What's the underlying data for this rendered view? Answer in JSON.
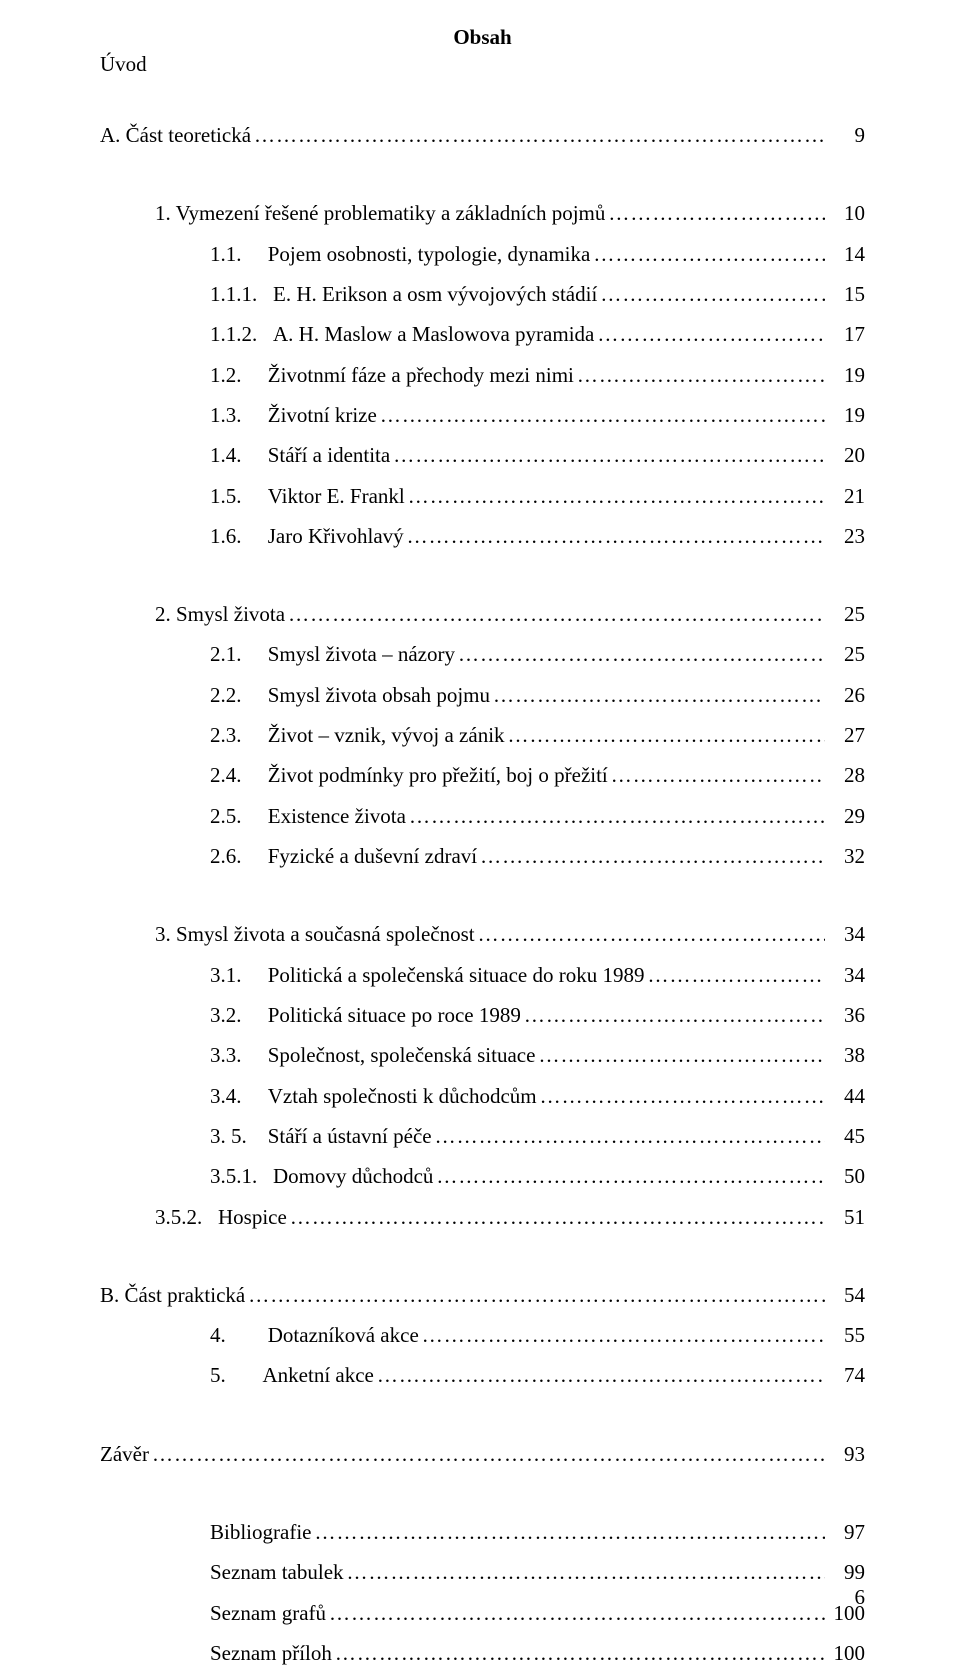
{
  "title": "Obsah",
  "uvod": "Úvod",
  "footer_page": "6",
  "entries": [
    {
      "indent": 0,
      "label": "A. Část teoretická",
      "page": "9",
      "gap_before": false
    },
    {
      "indent": 1,
      "label": "1. Vymezení řešené problematiky a základních pojmů",
      "page": "10",
      "gap_before": true
    },
    {
      "indent": 2,
      "label": "1.1.     Pojem osobnosti, typologie, dynamika",
      "page": "14",
      "gap_before": false
    },
    {
      "indent": 2,
      "label": "1.1.1.   E. H. Erikson a osm vývojových stádií",
      "page": "15",
      "gap_before": false
    },
    {
      "indent": 2,
      "label": "1.1.2.   A. H. Maslow a Maslowova pyramida",
      "page": "17",
      "gap_before": false
    },
    {
      "indent": 2,
      "label": "1.2.     Životnmí fáze a přechody mezi nimi",
      "page": "19",
      "gap_before": false
    },
    {
      "indent": 2,
      "label": "1.3.     Životní krize",
      "page": "19",
      "gap_before": false
    },
    {
      "indent": 2,
      "label": "1.4.     Stáří a identita",
      "page": "20",
      "gap_before": false
    },
    {
      "indent": 2,
      "label": "1.5.     Viktor E. Frankl",
      "page": "21",
      "gap_before": false
    },
    {
      "indent": 2,
      "label": "1.6.     Jaro Křivohlavý",
      "page": "23",
      "gap_before": false
    },
    {
      "indent": 1,
      "label": "2. Smysl života",
      "page": "25",
      "gap_before": true
    },
    {
      "indent": 2,
      "label": "2.1.     Smysl života – názory",
      "page": "25",
      "gap_before": false
    },
    {
      "indent": 2,
      "label": "2.2.     Smysl života obsah pojmu",
      "page": "26",
      "gap_before": false
    },
    {
      "indent": 2,
      "label": "2.3.     Život – vznik, vývoj a zánik",
      "page": "27",
      "gap_before": false
    },
    {
      "indent": 2,
      "label": "2.4.     Život podmínky pro přežití, boj o přežití",
      "page": "28",
      "gap_before": false
    },
    {
      "indent": 2,
      "label": "2.5.     Existence života",
      "page": "29",
      "gap_before": false
    },
    {
      "indent": 2,
      "label": "2.6.     Fyzické a duševní zdraví",
      "page": "32",
      "gap_before": false
    },
    {
      "indent": 1,
      "label": "3. Smysl života a současná společnost",
      "page": "34",
      "gap_before": true
    },
    {
      "indent": 2,
      "label": "3.1.     Politická a společenská situace do roku 1989",
      "page": "34",
      "gap_before": false
    },
    {
      "indent": 2,
      "label": "3.2.     Politická situace po roce 1989",
      "page": "36",
      "gap_before": false
    },
    {
      "indent": 2,
      "label": "3.3.     Společnost, společenská situace",
      "page": "38",
      "gap_before": false
    },
    {
      "indent": 2,
      "label": "3.4.     Vztah společnosti k důchodcům",
      "page": "44",
      "gap_before": false
    },
    {
      "indent": 2,
      "label": "3. 5.    Stáří a ústavní péče",
      "page": "45",
      "gap_before": false
    },
    {
      "indent": 2,
      "label": "3.5.1.   Domovy důchodců",
      "page": "50",
      "gap_before": false
    },
    {
      "indent": 1,
      "label": "3.5.2.   Hospice",
      "page": "51",
      "gap_before": false
    },
    {
      "indent": 0,
      "label": "B. Část praktická",
      "page": "54",
      "gap_before": true
    },
    {
      "indent": 2,
      "label": "4.        Dotazníková akce",
      "page": "55",
      "gap_before": false
    },
    {
      "indent": 2,
      "label": " 5.       Anketní akce",
      "page": "74",
      "gap_before": false
    },
    {
      "indent": 0,
      "label": "Závěr",
      "page": "93",
      "gap_before": true
    },
    {
      "indent": 2,
      "label": "Bibliografie",
      "page": "97",
      "gap_before": true
    },
    {
      "indent": 2,
      "label": "Seznam tabulek",
      "page": "99",
      "gap_before": false
    },
    {
      "indent": 2,
      "label": "Seznam grafů",
      "page": "100",
      "gap_before": false
    },
    {
      "indent": 2,
      "label": "Seznam příloh",
      "page": "100",
      "gap_before": false
    }
  ]
}
